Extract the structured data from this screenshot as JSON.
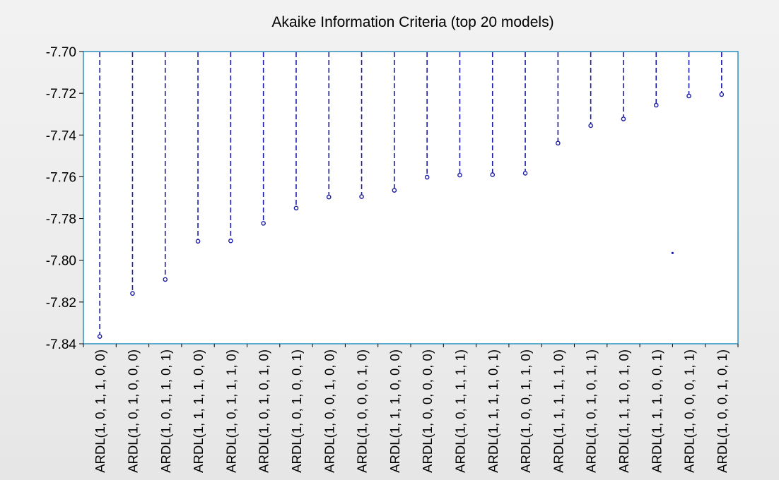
{
  "chart_data": {
    "type": "scatter",
    "title": "Akaike Information Criteria (top 20 models)",
    "xlabel": "",
    "ylabel": "",
    "ylim": [
      -7.84,
      -7.7
    ],
    "yticks": [
      -7.7,
      -7.72,
      -7.74,
      -7.76,
      -7.78,
      -7.8,
      -7.82,
      -7.84
    ],
    "grid": false,
    "legend": "none",
    "style": "dashed-drop-lines-from-top",
    "colors": {
      "series": "#1c1ca6",
      "frame": "#2a8fc0",
      "background": "#ffffff"
    },
    "categories": [
      "ARDL(1, 0, 1, 1, 0, 0)",
      "ARDL(1, 0, 1, 0, 0, 0)",
      "ARDL(1, 0, 1, 1, 0, 1)",
      "ARDL(1, 1, 1, 1, 0, 0)",
      "ARDL(1, 0, 1, 1, 1, 0)",
      "ARDL(1, 0, 1, 0, 1, 0)",
      "ARDL(1, 0, 1, 0, 0, 1)",
      "ARDL(1, 0, 0, 1, 0, 0)",
      "ARDL(1, 0, 0, 0, 1, 0)",
      "ARDL(1, 1, 1, 0, 0, 0)",
      "ARDL(1, 0, 0, 0, 0, 0)",
      "ARDL(1, 0, 1, 1, 1, 1)",
      "ARDL(1, 1, 1, 1, 0, 1)",
      "ARDL(1, 0, 0, 1, 1, 0)",
      "ARDL(1, 1, 1, 1, 1, 0)",
      "ARDL(1, 0, 1, 0, 1, 1)",
      "ARDL(1, 1, 1, 0, 1, 0)",
      "ARDL(1, 1, 1, 0, 0, 1)",
      "ARDL(1, 0, 0, 0, 1, 1)",
      "ARDL(1, 0, 0, 1, 0, 1)"
    ],
    "values": [
      -7.8365,
      -7.8159,
      -7.8092,
      -7.7909,
      -7.7907,
      -7.7823,
      -7.775,
      -7.7697,
      -7.7695,
      -7.7665,
      -7.7602,
      -7.7592,
      -7.759,
      -7.7583,
      -7.7439,
      -7.7355,
      -7.7323,
      -7.7257,
      -7.7213,
      -7.7206
    ],
    "annotations": [
      {
        "x_between": [
          17,
          18
        ],
        "y": -7.7965,
        "marker": "dot"
      }
    ]
  }
}
